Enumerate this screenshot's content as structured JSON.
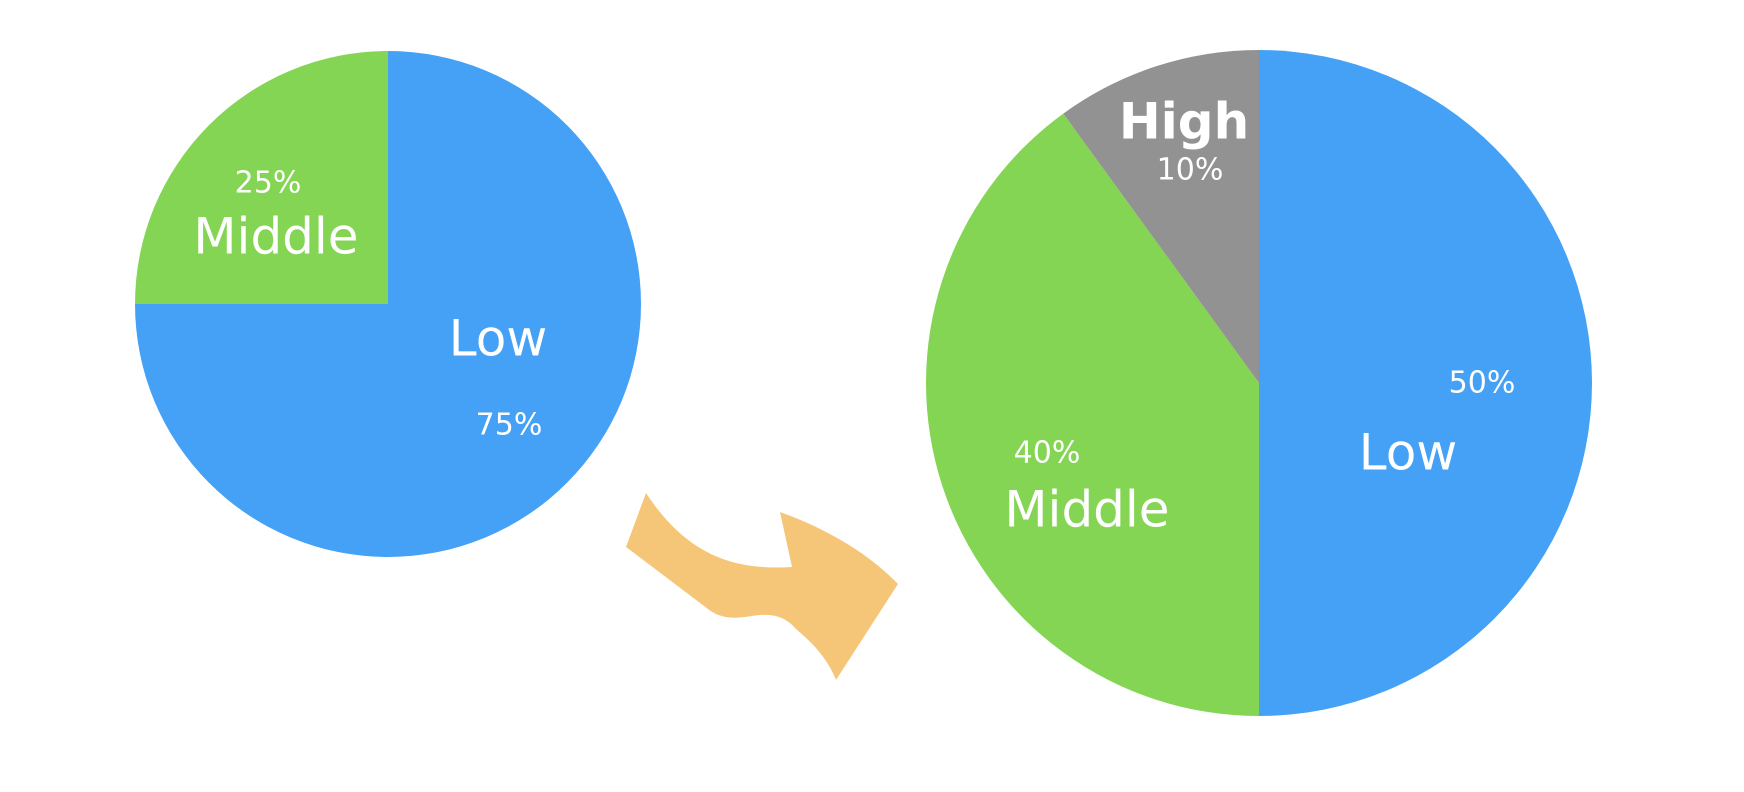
{
  "colors": {
    "low": "#45A1F6",
    "middle": "#84D553",
    "high": "#929292",
    "arrow": "#F6C678",
    "label": "#FFFFFF",
    "background": "#FFFFFF"
  },
  "chart_data": [
    {
      "type": "pie",
      "title": "",
      "slices": [
        {
          "name": "Low",
          "value": 75,
          "percent_label": "75%",
          "color_key": "low"
        },
        {
          "name": "Middle",
          "value": 25,
          "percent_label": "25%",
          "color_key": "middle"
        }
      ]
    },
    {
      "type": "pie",
      "title": "",
      "slices": [
        {
          "name": "Low",
          "value": 50,
          "percent_label": "50%",
          "color_key": "low"
        },
        {
          "name": "Middle",
          "value": 40,
          "percent_label": "40%",
          "color_key": "middle"
        },
        {
          "name": "High",
          "value": 10,
          "percent_label": "10%",
          "color_key": "high"
        }
      ]
    }
  ],
  "icons": {
    "transition": "curved-arrow-icon"
  }
}
